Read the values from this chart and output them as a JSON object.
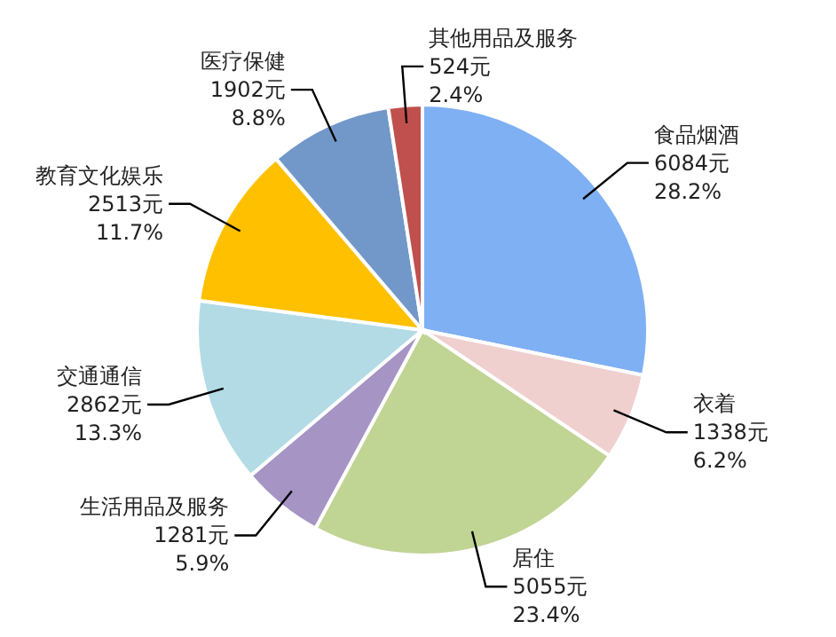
{
  "chart_data": {
    "type": "pie",
    "categories": [
      "食品烟酒",
      "衣着",
      "居住",
      "生活用品及服务",
      "交通通信",
      "教育文化娱乐",
      "医疗保健",
      "其他用品及服务"
    ],
    "values": [
      6084,
      1338,
      5055,
      1281,
      2862,
      2513,
      1902,
      524
    ],
    "value_labels": [
      "6084元\n28.2%",
      "1338元\n6.2%",
      "5055元\n23.4%",
      "1281元\n5.9%",
      "2862元\n13.3%",
      "2513元\n11.7%",
      "1902元\n8.8%",
      "524元\n2.4%"
    ],
    "colors": [
      "#7fb0f3",
      "#f0cfcf",
      "#c0d494",
      "#a594c4",
      "#b3dbe6",
      "#ffc000",
      "#7298c9",
      "#c0504d"
    ]
  }
}
